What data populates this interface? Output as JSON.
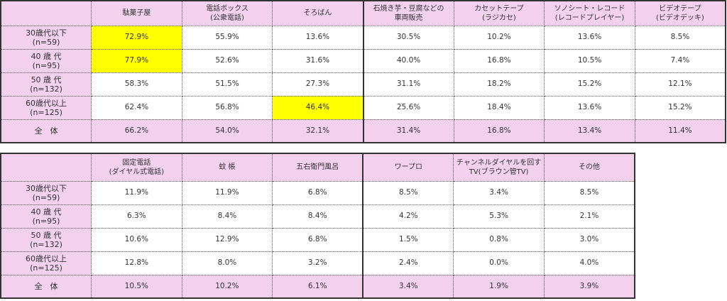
{
  "colors": {
    "header_bg": "#f2d0ee",
    "highlight": "#ffff00"
  },
  "row_labels": [
    {
      "line1": "30歳代以下",
      "line2": "(n=59)"
    },
    {
      "line1": "40 歳 代",
      "line2": "(n=95)"
    },
    {
      "line1": "50 歳 代",
      "line2": "(n=132)"
    },
    {
      "line1": "60歳代以上",
      "line2": "(n=125)"
    },
    {
      "line1": "全　体",
      "line2": ""
    }
  ],
  "table1": {
    "columns": [
      {
        "line1": "駄菓子屋",
        "line2": ""
      },
      {
        "line1": "電話ボックス",
        "line2": "(公衆電話)"
      },
      {
        "line1": "そろばん",
        "line2": ""
      },
      {
        "line1": "石焼き芋・豆腐などの",
        "line2": "車両販売"
      },
      {
        "line1": "カセットテープ",
        "line2": "(ラジカセ)"
      },
      {
        "line1": "ソノシート・レコード",
        "line2": "(レコードプレイヤー)"
      },
      {
        "line1": "ビデオテープ",
        "line2": "(ビデオデッキ)"
      }
    ],
    "rows": [
      [
        "72.9%",
        "55.9%",
        "13.6%",
        "30.5%",
        "10.2%",
        "13.6%",
        "8.5%"
      ],
      [
        "77.9%",
        "52.6%",
        "31.6%",
        "40.0%",
        "16.8%",
        "10.5%",
        "7.4%"
      ],
      [
        "58.3%",
        "51.5%",
        "27.3%",
        "31.1%",
        "18.2%",
        "15.2%",
        "12.1%"
      ],
      [
        "62.4%",
        "56.8%",
        "46.4%",
        "25.6%",
        "18.4%",
        "13.6%",
        "15.2%"
      ],
      [
        "66.2%",
        "54.0%",
        "32.1%",
        "31.4%",
        "16.8%",
        "13.4%",
        "11.4%"
      ]
    ],
    "highlighted": [
      [
        0,
        0
      ],
      [
        1,
        0
      ],
      [
        3,
        2
      ]
    ]
  },
  "table2": {
    "columns": [
      {
        "line1": "固定電話",
        "line2": "(ダイヤル式電話)"
      },
      {
        "line1": "蚊 帳",
        "line2": ""
      },
      {
        "line1": "五右衛門風呂",
        "line2": ""
      },
      {
        "line1": "ワープロ",
        "line2": ""
      },
      {
        "line1": "チャンネルダイヤルを回す",
        "line2": "TV(ブラウン管TV)"
      },
      {
        "line1": "その他",
        "line2": ""
      }
    ],
    "rows": [
      [
        "11.9%",
        "11.9%",
        "6.8%",
        "8.5%",
        "3.4%",
        "8.5%"
      ],
      [
        "6.3%",
        "8.4%",
        "8.4%",
        "4.2%",
        "5.3%",
        "2.1%"
      ],
      [
        "10.6%",
        "12.9%",
        "6.8%",
        "1.5%",
        "0.8%",
        "3.0%"
      ],
      [
        "12.8%",
        "8.0%",
        "3.2%",
        "2.4%",
        "0.0%",
        "4.0%"
      ],
      [
        "10.5%",
        "10.2%",
        "6.1%",
        "3.4%",
        "1.9%",
        "3.9%"
      ]
    ],
    "highlighted": []
  }
}
